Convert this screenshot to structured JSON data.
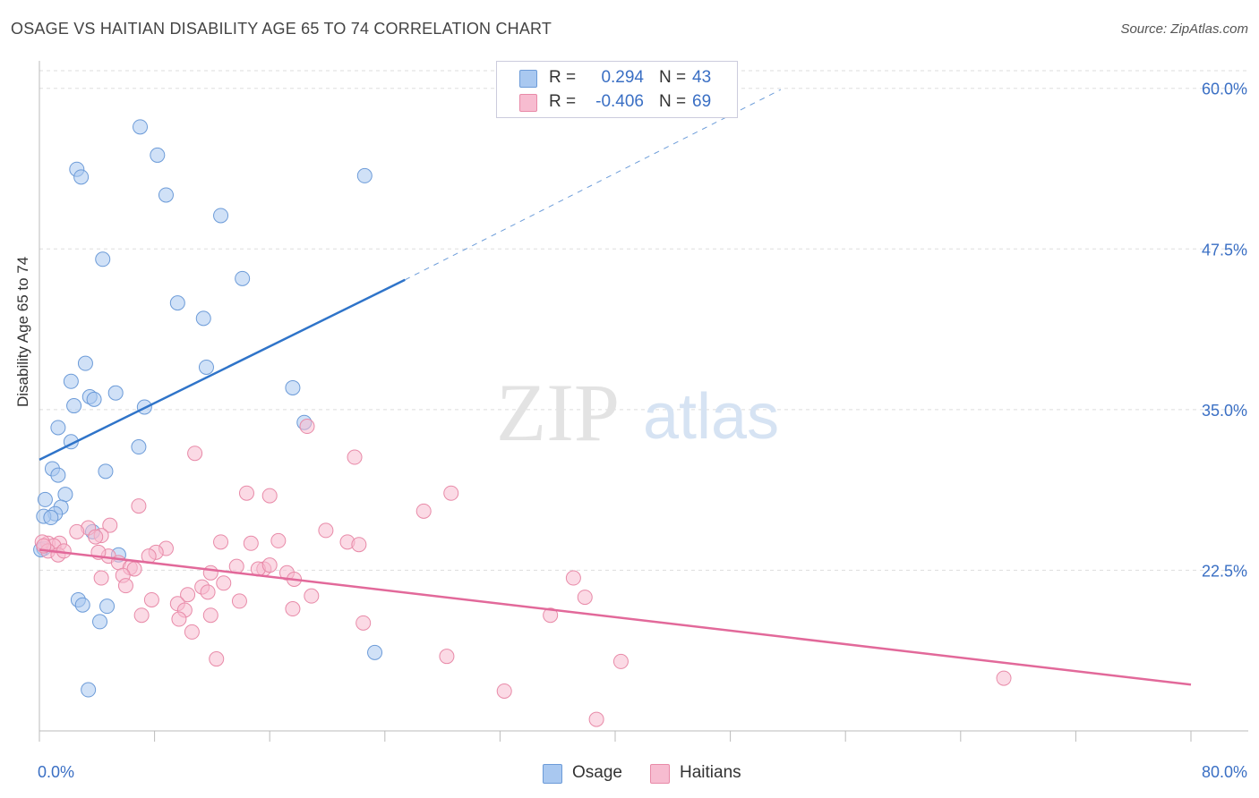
{
  "title": "OSAGE VS HAITIAN DISABILITY AGE 65 TO 74 CORRELATION CHART",
  "source": "Source: ZipAtlas.com",
  "watermark": {
    "zip": "ZIP",
    "atlas": "atlas"
  },
  "legend": {
    "rows": [
      {
        "r_label": "R =",
        "r_value": "0.294",
        "n_label": "N =",
        "n_value": "43",
        "color": "#a9c8f0",
        "border": "#6c9bd8"
      },
      {
        "r_label": "R =",
        "r_value": "-0.406",
        "n_label": "N =",
        "n_value": "69",
        "color": "#f7bcd0",
        "border": "#e88aa8"
      }
    ]
  },
  "bottom_legend": [
    {
      "label": "Osage",
      "color": "#a9c8f0",
      "border": "#6c9bd8"
    },
    {
      "label": "Haitians",
      "color": "#f7bcd0",
      "border": "#e88aa8"
    }
  ],
  "chart_data": {
    "type": "scatter",
    "title": "OSAGE VS HAITIAN DISABILITY AGE 65 TO 74 CORRELATION CHART",
    "ylabel": "Disability Age 65 to 74",
    "xlabel": "",
    "xlim": [
      0,
      80
    ],
    "ylim": [
      10,
      62
    ],
    "x_tick_labels": [
      "0.0%",
      "80.0%"
    ],
    "y_ticks": [
      22.5,
      35.0,
      47.5,
      60.0
    ],
    "y_tick_labels": [
      "22.5%",
      "35.0%",
      "47.5%",
      "60.0%"
    ],
    "grid": true,
    "series": [
      {
        "name": "Osage",
        "color": "#a9c8f0",
        "stroke": "#6c9bd8",
        "line_color": "#2f74c9",
        "points": [
          [
            7.0,
            57.0
          ],
          [
            8.2,
            54.8
          ],
          [
            2.6,
            53.7
          ],
          [
            2.9,
            53.1
          ],
          [
            22.6,
            53.2
          ],
          [
            8.8,
            51.7
          ],
          [
            12.6,
            50.1
          ],
          [
            4.4,
            46.7
          ],
          [
            14.1,
            45.2
          ],
          [
            9.6,
            43.3
          ],
          [
            11.4,
            42.1
          ],
          [
            3.2,
            38.6
          ],
          [
            11.6,
            38.3
          ],
          [
            2.2,
            37.2
          ],
          [
            17.6,
            36.7
          ],
          [
            3.5,
            36.0
          ],
          [
            5.3,
            36.3
          ],
          [
            3.8,
            35.8
          ],
          [
            2.4,
            35.3
          ],
          [
            7.3,
            35.2
          ],
          [
            1.3,
            33.6
          ],
          [
            18.4,
            34.0
          ],
          [
            2.2,
            32.5
          ],
          [
            6.9,
            32.1
          ],
          [
            0.9,
            30.4
          ],
          [
            4.6,
            30.2
          ],
          [
            1.3,
            29.9
          ],
          [
            1.8,
            28.4
          ],
          [
            0.4,
            28.0
          ],
          [
            1.5,
            27.4
          ],
          [
            1.1,
            26.9
          ],
          [
            0.3,
            26.7
          ],
          [
            0.8,
            26.6
          ],
          [
            3.7,
            25.5
          ],
          [
            0.3,
            24.2
          ],
          [
            5.5,
            23.7
          ],
          [
            2.7,
            20.2
          ],
          [
            4.7,
            19.7
          ],
          [
            3.0,
            19.8
          ],
          [
            4.2,
            18.5
          ],
          [
            23.3,
            16.1
          ],
          [
            3.4,
            13.2
          ],
          [
            0.1,
            24.1
          ]
        ],
        "trend": {
          "x0": 0,
          "y0": 31.1,
          "x1": 25.4,
          "y1": 45.1,
          "dash_x1": 51.5,
          "dash_y1": 59.9
        }
      },
      {
        "name": "Haitians",
        "color": "#f7bcd0",
        "stroke": "#e88aa8",
        "line_color": "#e2699a",
        "points": [
          [
            18.6,
            33.7
          ],
          [
            10.8,
            31.6
          ],
          [
            21.9,
            31.3
          ],
          [
            14.4,
            28.5
          ],
          [
            16.0,
            28.3
          ],
          [
            28.6,
            28.5
          ],
          [
            6.9,
            27.5
          ],
          [
            26.7,
            27.1
          ],
          [
            4.9,
            26.0
          ],
          [
            3.4,
            25.8
          ],
          [
            19.9,
            25.6
          ],
          [
            2.6,
            25.5
          ],
          [
            4.3,
            25.2
          ],
          [
            3.9,
            25.1
          ],
          [
            16.6,
            24.8
          ],
          [
            12.6,
            24.7
          ],
          [
            14.7,
            24.6
          ],
          [
            21.4,
            24.7
          ],
          [
            22.2,
            24.5
          ],
          [
            0.6,
            24.6
          ],
          [
            1.4,
            24.6
          ],
          [
            1.0,
            24.4
          ],
          [
            0.2,
            24.7
          ],
          [
            8.8,
            24.2
          ],
          [
            8.1,
            23.9
          ],
          [
            0.6,
            24.0
          ],
          [
            1.3,
            23.7
          ],
          [
            4.8,
            23.6
          ],
          [
            4.1,
            23.9
          ],
          [
            7.6,
            23.6
          ],
          [
            5.5,
            23.1
          ],
          [
            6.3,
            22.7
          ],
          [
            6.6,
            22.6
          ],
          [
            13.7,
            22.8
          ],
          [
            15.6,
            22.6
          ],
          [
            15.2,
            22.6
          ],
          [
            16.0,
            22.9
          ],
          [
            17.2,
            22.3
          ],
          [
            11.9,
            22.3
          ],
          [
            17.7,
            21.8
          ],
          [
            4.3,
            21.9
          ],
          [
            5.8,
            22.1
          ],
          [
            12.8,
            21.5
          ],
          [
            11.3,
            21.2
          ],
          [
            11.7,
            20.8
          ],
          [
            10.3,
            20.6
          ],
          [
            7.8,
            20.2
          ],
          [
            18.9,
            20.5
          ],
          [
            13.9,
            20.1
          ],
          [
            37.1,
            21.9
          ],
          [
            37.9,
            20.4
          ],
          [
            9.6,
            19.9
          ],
          [
            10.1,
            19.4
          ],
          [
            17.6,
            19.5
          ],
          [
            11.9,
            19.0
          ],
          [
            7.1,
            19.0
          ],
          [
            9.7,
            18.7
          ],
          [
            35.5,
            19.0
          ],
          [
            22.5,
            18.4
          ],
          [
            10.6,
            17.7
          ],
          [
            12.3,
            15.6
          ],
          [
            28.3,
            15.8
          ],
          [
            40.4,
            15.4
          ],
          [
            67.0,
            14.1
          ],
          [
            32.3,
            13.1
          ],
          [
            38.7,
            10.9
          ],
          [
            0.3,
            24.4
          ],
          [
            1.7,
            24.0
          ],
          [
            6.0,
            21.3
          ]
        ],
        "trend": {
          "x0": 0,
          "y0": 24.1,
          "x1": 80,
          "y1": 13.6
        }
      }
    ]
  }
}
